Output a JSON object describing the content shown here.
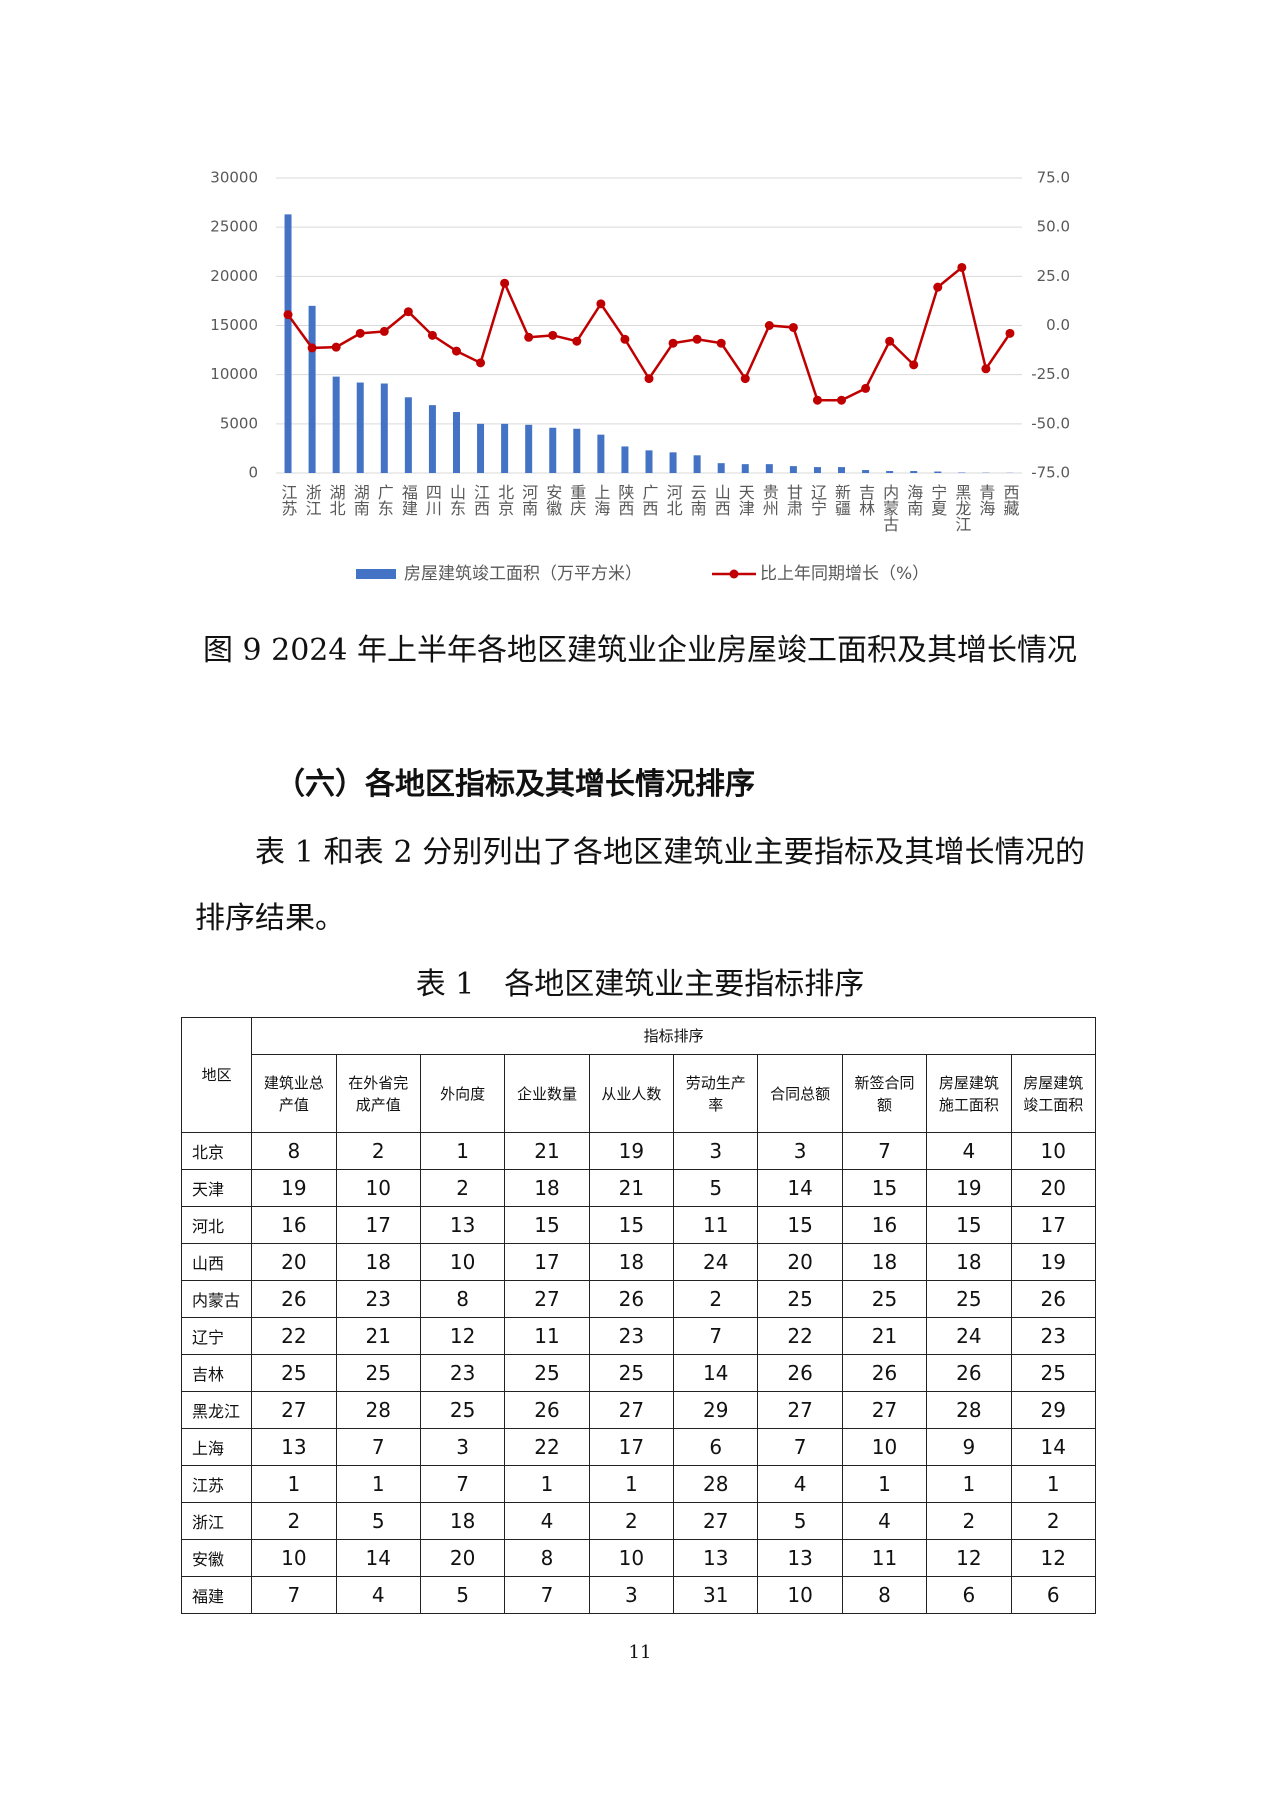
{
  "chart_data": {
    "type": "bar-line",
    "categories": [
      "江苏",
      "浙江",
      "湖北",
      "湖南",
      "广东",
      "福建",
      "四川",
      "山东",
      "江西",
      "北京",
      "河南",
      "安徽",
      "重庆",
      "上海",
      "陕西",
      "广西",
      "河北",
      "云南",
      "山西",
      "天津",
      "贵州",
      "甘肃",
      "辽宁",
      "新疆",
      "吉林",
      "内蒙古",
      "海南",
      "宁夏",
      "黑龙江",
      "青海",
      "西藏"
    ],
    "series": [
      {
        "name": "房屋建筑竣工面积（万平方米）",
        "type": "bar",
        "color": "#4472c4",
        "values": [
          26300,
          17000,
          9800,
          9200,
          9100,
          7700,
          6900,
          6200,
          5000,
          5000,
          4900,
          4600,
          4500,
          3900,
          2700,
          2300,
          2100,
          1800,
          1000,
          900,
          900,
          700,
          600,
          600,
          300,
          200,
          200,
          150,
          50,
          30,
          20
        ]
      },
      {
        "name": "比上年同期增长（%）",
        "type": "line",
        "axis": "y2",
        "color": "#c00000",
        "values": [
          5.5,
          -11.4,
          -11,
          -4,
          -3,
          7,
          -5,
          -13,
          -19,
          21.5,
          -6,
          -5,
          -8,
          11,
          -7,
          -27,
          -9,
          -7,
          -9,
          -27,
          0,
          -1,
          -38,
          -38,
          -32,
          -8,
          -20,
          19.5,
          29.5,
          -22,
          -4
        ]
      }
    ],
    "ylim": [
      0,
      30000
    ],
    "yticks": [
      0,
      5000,
      10000,
      15000,
      20000,
      25000,
      30000
    ],
    "y2lim": [
      -75,
      75
    ],
    "y2ticks": [
      {
        "value": -75,
        "label": "-75.0"
      },
      {
        "value": -50,
        "label": "-50.0"
      },
      {
        "value": -25,
        "label": "-25.0"
      },
      {
        "value": 0,
        "label": "0.0"
      },
      {
        "value": 25,
        "label": "25.0"
      },
      {
        "value": 50,
        "label": "50.0"
      },
      {
        "value": 75,
        "label": "75.0"
      }
    ],
    "grid": true,
    "legend": "bottom"
  },
  "caption": "图 9 2024 年上半年各地区建筑业企业房屋竣工面积及其增长情况",
  "heading": "（六）各地区指标及其增长情况排序",
  "paragraph": "表 1 和表 2 分别列出了各地区建筑业主要指标及其增长情况的排序结果。",
  "table": {
    "title": "表 1　各地区建筑业主要指标排序",
    "header": {
      "region": "地区",
      "group": "指标排序",
      "columns": [
        "建筑业总产值",
        "在外省完成产值",
        "外向度",
        "企业数量",
        "从业人数",
        "劳动生产率",
        "合同总额",
        "新签合同额",
        "房屋建筑施工面积",
        "房屋建筑竣工面积"
      ]
    },
    "rows": [
      [
        "北京",
        8,
        2,
        1,
        21,
        19,
        3,
        3,
        7,
        4,
        10
      ],
      [
        "天津",
        19,
        10,
        2,
        18,
        21,
        5,
        14,
        15,
        19,
        20
      ],
      [
        "河北",
        16,
        17,
        13,
        15,
        15,
        11,
        15,
        16,
        15,
        17
      ],
      [
        "山西",
        20,
        18,
        10,
        17,
        18,
        24,
        20,
        18,
        18,
        19
      ],
      [
        "内蒙古",
        26,
        23,
        8,
        27,
        26,
        2,
        25,
        25,
        25,
        26
      ],
      [
        "辽宁",
        22,
        21,
        12,
        11,
        23,
        7,
        22,
        21,
        24,
        23
      ],
      [
        "吉林",
        25,
        25,
        23,
        25,
        25,
        14,
        26,
        26,
        26,
        25
      ],
      [
        "黑龙江",
        27,
        28,
        25,
        26,
        27,
        29,
        27,
        27,
        28,
        29
      ],
      [
        "上海",
        13,
        7,
        3,
        22,
        17,
        6,
        7,
        10,
        9,
        14
      ],
      [
        "江苏",
        1,
        1,
        7,
        1,
        1,
        28,
        4,
        1,
        1,
        1
      ],
      [
        "浙江",
        2,
        5,
        18,
        4,
        2,
        27,
        5,
        4,
        2,
        2
      ],
      [
        "安徽",
        10,
        14,
        20,
        8,
        10,
        13,
        13,
        11,
        12,
        12
      ],
      [
        "福建",
        7,
        4,
        5,
        7,
        3,
        31,
        10,
        8,
        6,
        6
      ]
    ]
  },
  "page_number": "11"
}
